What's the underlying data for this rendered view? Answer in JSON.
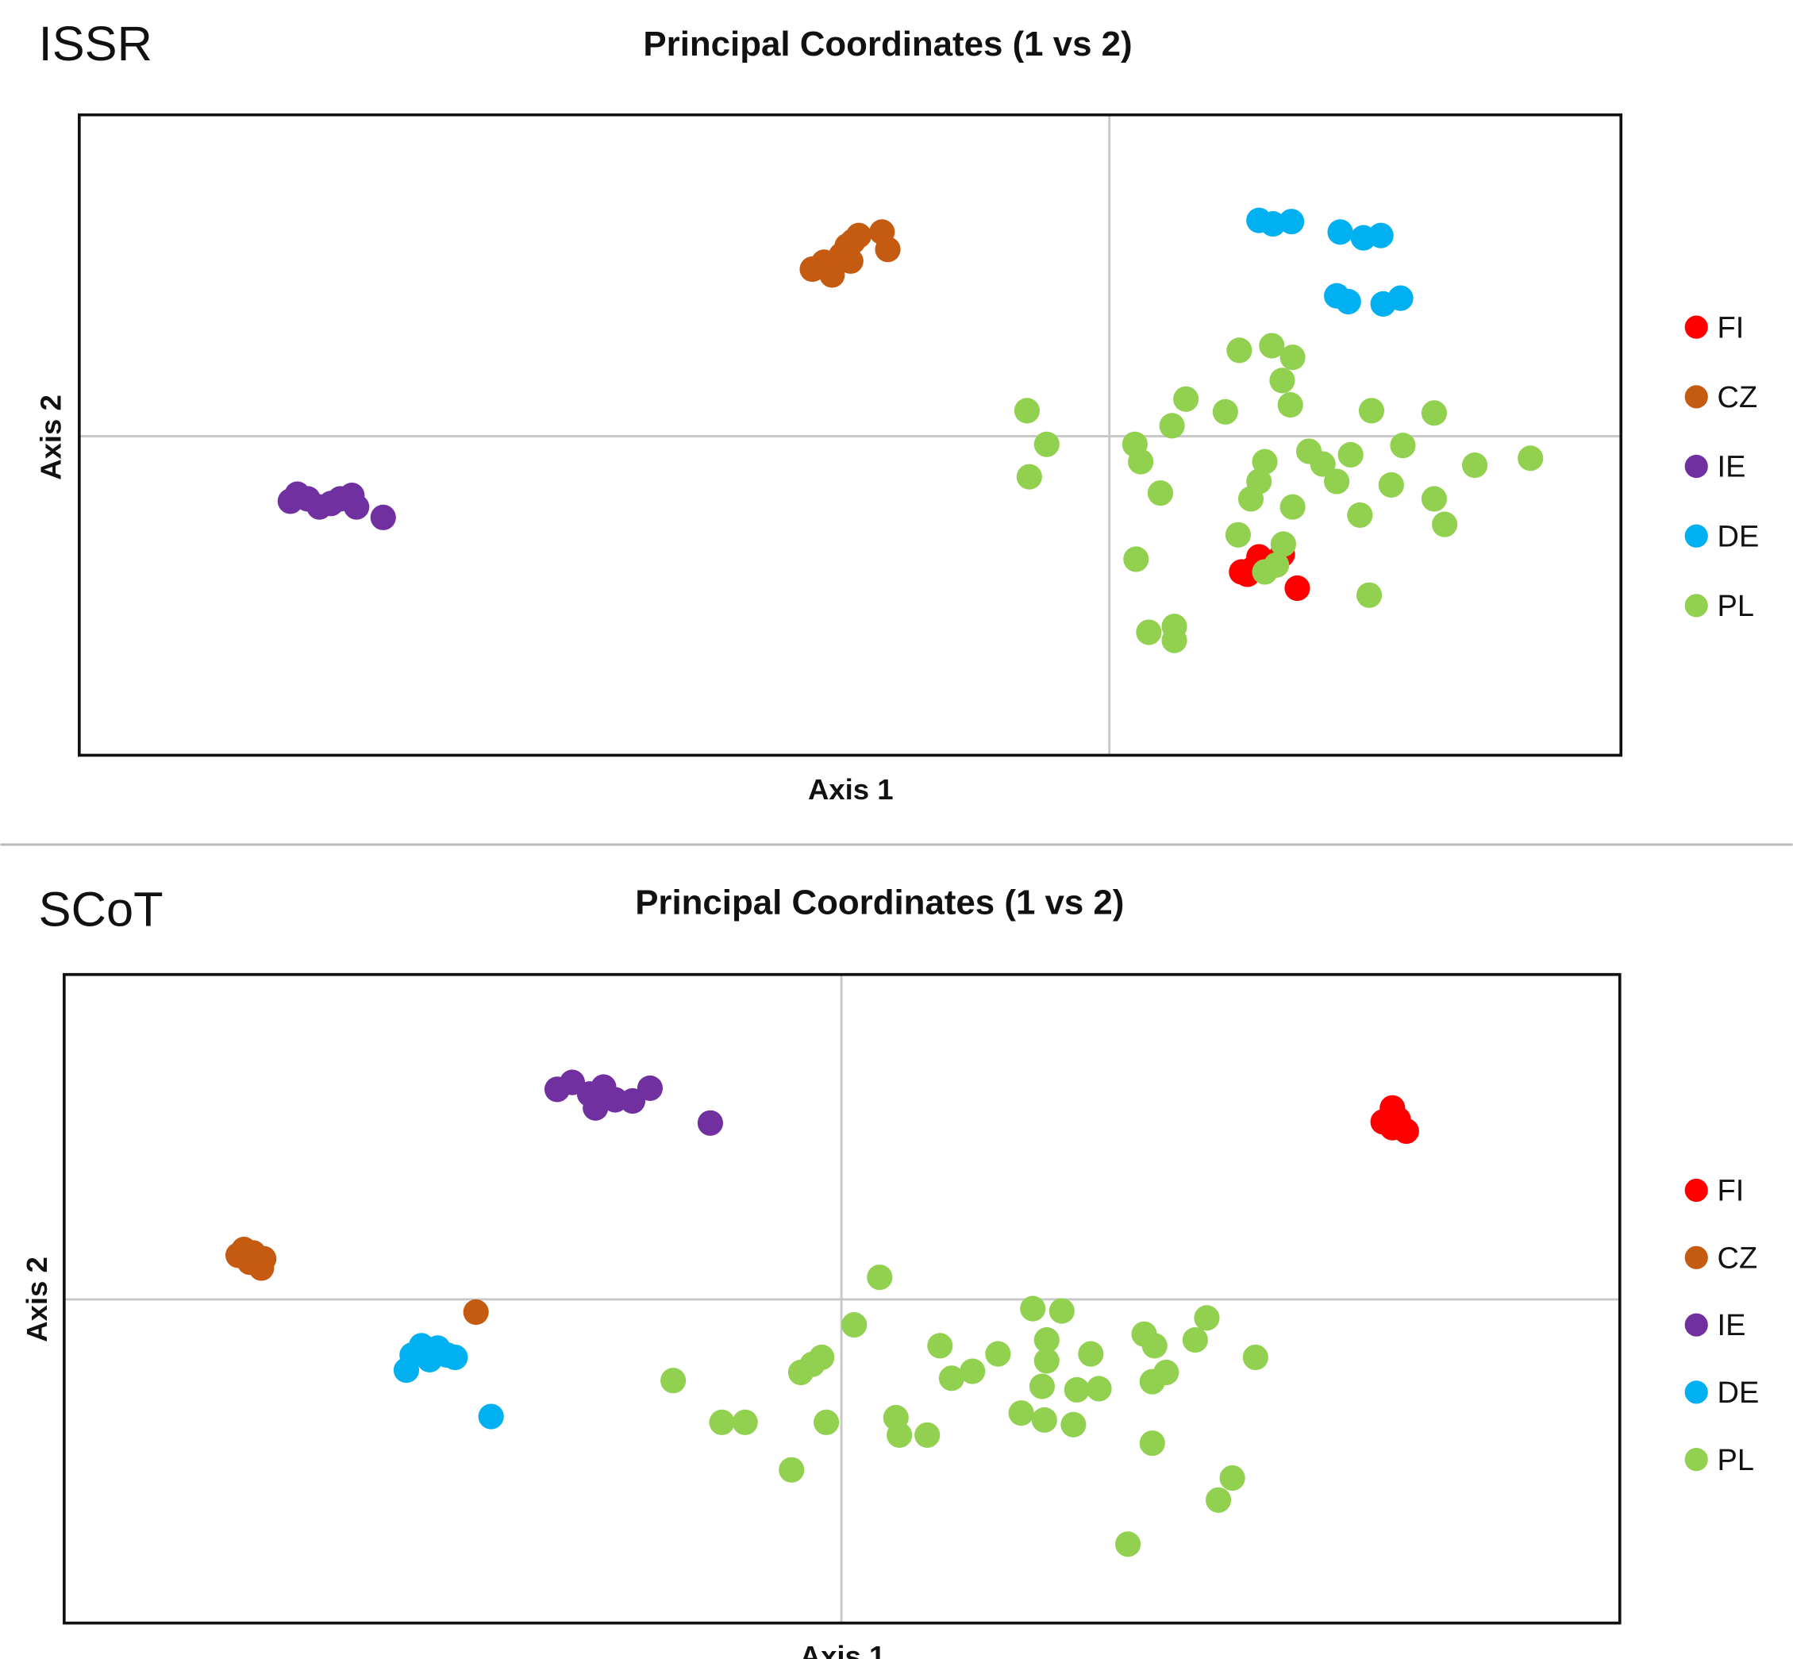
{
  "colors": {
    "FI": "#ff0000",
    "CZ": "#c55a11",
    "IE": "#7030a0",
    "DE": "#00b0f0",
    "PL": "#92d050"
  },
  "chart_data": [
    {
      "type": "scatter",
      "panel_label": "ISSR",
      "title": "Principal Coordinates (1 vs 2)",
      "xlabel": "Axis 1",
      "ylabel": "Axis 2",
      "xlim": [
        -8.88,
        4.41
      ],
      "ylim": [
        -2.75,
        2.77
      ],
      "grid": "zero lines only",
      "legend_position": "right",
      "legend": [
        "FI",
        "CZ",
        "IE",
        "DE",
        "PL"
      ],
      "series": [
        {
          "name": "FI",
          "points": [
            [
              1.19,
              -1.19
            ],
            [
              1.29,
              -1.04
            ],
            [
              1.24,
              -1.14
            ],
            [
              1.39,
              -1.09
            ],
            [
              1.49,
              -1.02
            ],
            [
              1.62,
              -1.31
            ],
            [
              1.14,
              -1.17
            ]
          ]
        },
        {
          "name": "CZ",
          "points": [
            [
              -2.56,
              1.44
            ],
            [
              -2.46,
              1.5
            ],
            [
              -2.39,
              1.39
            ],
            [
              -2.31,
              1.56
            ],
            [
              -2.23,
              1.51
            ],
            [
              -2.21,
              1.68
            ],
            [
              -2.16,
              1.73
            ],
            [
              -1.96,
              1.76
            ],
            [
              -1.91,
              1.61
            ],
            [
              -2.26,
              1.64
            ]
          ]
        },
        {
          "name": "IE",
          "points": [
            [
              -7.06,
              -0.56
            ],
            [
              -7.0,
              -0.5
            ],
            [
              -6.91,
              -0.54
            ],
            [
              -6.81,
              -0.61
            ],
            [
              -6.71,
              -0.58
            ],
            [
              -6.63,
              -0.54
            ],
            [
              -6.53,
              -0.51
            ],
            [
              -6.49,
              -0.61
            ],
            [
              -6.26,
              -0.7
            ]
          ]
        },
        {
          "name": "DE",
          "points": [
            [
              1.29,
              1.86
            ],
            [
              1.41,
              1.83
            ],
            [
              1.57,
              1.85
            ],
            [
              1.99,
              1.76
            ],
            [
              2.19,
              1.71
            ],
            [
              2.34,
              1.73
            ],
            [
              1.96,
              1.21
            ],
            [
              2.06,
              1.16
            ],
            [
              2.36,
              1.14
            ],
            [
              2.51,
              1.19
            ]
          ]
        },
        {
          "name": "PL",
          "points": [
            [
              -0.71,
              0.22
            ],
            [
              -0.54,
              -0.07
            ],
            [
              -0.69,
              -0.35
            ],
            [
              0.22,
              -0.07
            ],
            [
              0.27,
              -0.22
            ],
            [
              0.44,
              -0.49
            ],
            [
              0.54,
              0.09
            ],
            [
              0.66,
              0.32
            ],
            [
              1.0,
              0.21
            ],
            [
              1.12,
              0.74
            ],
            [
              1.4,
              0.78
            ],
            [
              1.58,
              0.68
            ],
            [
              1.49,
              0.48
            ],
            [
              1.56,
              0.27
            ],
            [
              2.26,
              0.22
            ],
            [
              2.8,
              0.2
            ],
            [
              1.34,
              -0.22
            ],
            [
              1.29,
              -0.39
            ],
            [
              1.22,
              -0.54
            ],
            [
              1.58,
              -0.61
            ],
            [
              1.72,
              -0.13
            ],
            [
              1.84,
              -0.24
            ],
            [
              1.96,
              -0.39
            ],
            [
              2.08,
              -0.16
            ],
            [
              2.53,
              -0.08
            ],
            [
              2.43,
              -0.42
            ],
            [
              2.16,
              -0.68
            ],
            [
              2.8,
              -0.54
            ],
            [
              2.89,
              -0.76
            ],
            [
              3.15,
              -0.25
            ],
            [
              3.63,
              -0.19
            ],
            [
              1.11,
              -0.85
            ],
            [
              1.5,
              -0.93
            ],
            [
              0.23,
              -1.06
            ],
            [
              1.34,
              -1.17
            ],
            [
              1.44,
              -1.11
            ],
            [
              2.24,
              -1.37
            ],
            [
              0.34,
              -1.69
            ],
            [
              0.56,
              -1.64
            ],
            [
              0.56,
              -1.76
            ]
          ]
        }
      ]
    },
    {
      "type": "scatter",
      "panel_label": "SCoT",
      "title": "Principal Coordinates (1 vs 2)",
      "xlabel": "Axis 1",
      "ylabel": "Axis 2",
      "xlim": [
        -6.7,
        6.71
      ],
      "ylim": [
        -2.79,
        2.8
      ],
      "grid": "zero lines only",
      "legend_position": "right",
      "legend": [
        "FI",
        "CZ",
        "IE",
        "DE",
        "PL"
      ],
      "series": [
        {
          "name": "FI",
          "points": [
            [
              4.75,
              1.65
            ],
            [
              4.67,
              1.53
            ],
            [
              4.75,
              1.48
            ],
            [
              4.87,
              1.45
            ],
            [
              4.8,
              1.55
            ]
          ]
        },
        {
          "name": "CZ",
          "points": [
            [
              -5.15,
              0.43
            ],
            [
              -5.2,
              0.38
            ],
            [
              -5.1,
              0.32
            ],
            [
              -5.0,
              0.27
            ],
            [
              -4.98,
              0.35
            ],
            [
              -5.07,
              0.4
            ],
            [
              -3.15,
              -0.11
            ]
          ]
        },
        {
          "name": "IE",
          "points": [
            [
              -2.45,
              1.81
            ],
            [
              -2.32,
              1.87
            ],
            [
              -2.17,
              1.77
            ],
            [
              -2.05,
              1.83
            ],
            [
              -2.12,
              1.65
            ],
            [
              -1.95,
              1.72
            ],
            [
              -1.8,
              1.71
            ],
            [
              -1.65,
              1.82
            ],
            [
              -1.13,
              1.52
            ]
          ]
        },
        {
          "name": "DE",
          "points": [
            [
              -3.75,
              -0.61
            ],
            [
              -3.7,
              -0.48
            ],
            [
              -3.62,
              -0.4
            ],
            [
              -3.55,
              -0.52
            ],
            [
              -3.48,
              -0.42
            ],
            [
              -3.4,
              -0.48
            ],
            [
              -3.33,
              -0.5
            ],
            [
              -3.02,
              -1.01
            ]
          ]
        },
        {
          "name": "PL",
          "points": [
            [
              0.33,
              0.19
            ],
            [
              0.11,
              -0.22
            ],
            [
              -1.45,
              -0.7
            ],
            [
              -1.03,
              -1.06
            ],
            [
              -0.83,
              -1.06
            ],
            [
              -0.43,
              -1.47
            ],
            [
              -0.35,
              -0.63
            ],
            [
              -0.25,
              -0.56
            ],
            [
              -0.17,
              -0.5
            ],
            [
              -0.13,
              -1.06
            ],
            [
              0.47,
              -1.02
            ],
            [
              0.5,
              -1.17
            ],
            [
              0.74,
              -1.17
            ],
            [
              0.85,
              -0.4
            ],
            [
              0.95,
              -0.68
            ],
            [
              1.13,
              -0.62
            ],
            [
              1.35,
              -0.47
            ],
            [
              1.55,
              -0.98
            ],
            [
              1.65,
              -0.08
            ],
            [
              1.75,
              -1.04
            ],
            [
              1.73,
              -0.75
            ],
            [
              1.77,
              -0.53
            ],
            [
              1.77,
              -0.35
            ],
            [
              1.9,
              -0.1
            ],
            [
              2.0,
              -1.08
            ],
            [
              2.03,
              -0.78
            ],
            [
              2.15,
              -0.47
            ],
            [
              2.22,
              -0.77
            ],
            [
              2.61,
              -0.3
            ],
            [
              2.7,
              -0.4
            ],
            [
              2.68,
              -0.71
            ],
            [
              2.8,
              -0.63
            ],
            [
              2.68,
              -1.24
            ],
            [
              3.05,
              -0.35
            ],
            [
              3.15,
              -0.16
            ],
            [
              3.57,
              -0.5
            ],
            [
              3.37,
              -1.54
            ],
            [
              3.25,
              -1.73
            ],
            [
              2.47,
              -2.11
            ]
          ]
        }
      ]
    }
  ]
}
